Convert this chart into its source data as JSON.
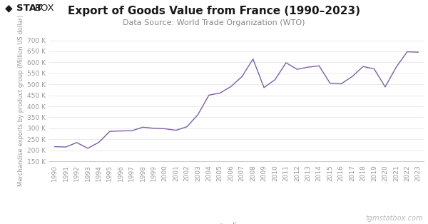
{
  "title": "Export of Goods Value from France (1990–2023)",
  "subtitle": "Data Source: World Trade Organization (WTO)",
  "ylabel": "Merchandise exports by product group (Million US dollar)",
  "legend_label": "France",
  "watermark": "tgmstatbox.com",
  "line_color": "#7b5ea7",
  "background_color": "#ffffff",
  "ylim": [
    150000,
    700000
  ],
  "yticks": [
    150000,
    200000,
    250000,
    300000,
    350000,
    400000,
    450000,
    500000,
    550000,
    600000,
    650000,
    700000
  ],
  "years": [
    1990,
    1991,
    1992,
    1993,
    1994,
    1995,
    1996,
    1997,
    1998,
    1999,
    2000,
    2001,
    2002,
    2003,
    2004,
    2005,
    2006,
    2007,
    2008,
    2009,
    2010,
    2011,
    2012,
    2013,
    2014,
    2015,
    2016,
    2017,
    2018,
    2019,
    2020,
    2021,
    2022,
    2023
  ],
  "values": [
    216500,
    215000,
    235000,
    209000,
    236000,
    286000,
    288000,
    289000,
    305000,
    300000,
    298000,
    291000,
    307000,
    362000,
    451000,
    460000,
    490000,
    535000,
    615000,
    485000,
    521000,
    598000,
    568000,
    578000,
    584000,
    505000,
    502000,
    535000,
    581000,
    570000,
    488000,
    578000,
    648000,
    646000
  ],
  "grid_color": "#e8e8e8",
  "tick_color": "#999999",
  "title_fontsize": 11,
  "subtitle_fontsize": 8,
  "ylabel_fontsize": 6,
  "tick_fontsize": 6.5
}
